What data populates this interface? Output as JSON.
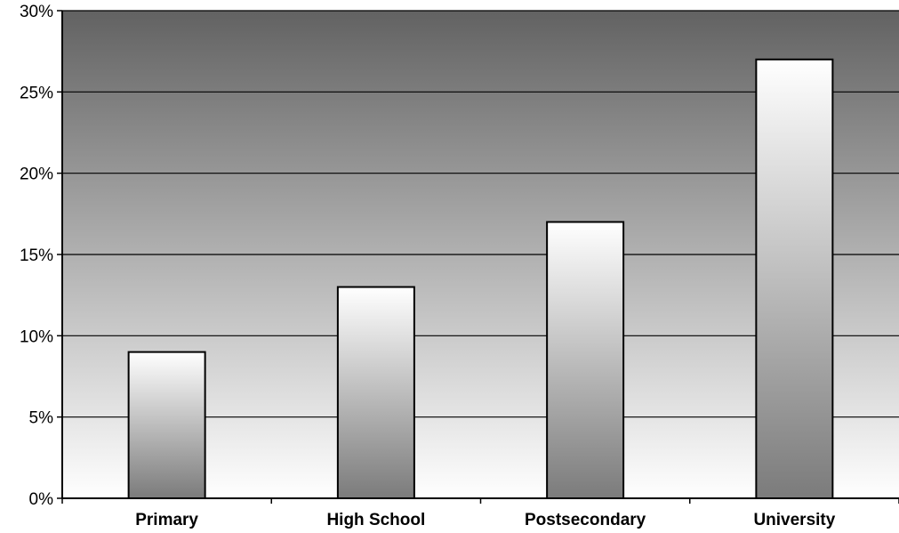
{
  "chart_data": {
    "type": "bar",
    "title": "",
    "xlabel": "",
    "ylabel": "",
    "categories": [
      "Primary",
      "High School",
      "Postsecondary",
      "University"
    ],
    "values": [
      9,
      13,
      17,
      27
    ],
    "ylim": [
      0,
      30
    ],
    "yticks": [
      0,
      5,
      10,
      15,
      20,
      25,
      30
    ],
    "ytick_labels": [
      "0%",
      "5%",
      "10%",
      "15%",
      "20%",
      "25%",
      "30%"
    ],
    "grid": true,
    "legend": "none"
  }
}
